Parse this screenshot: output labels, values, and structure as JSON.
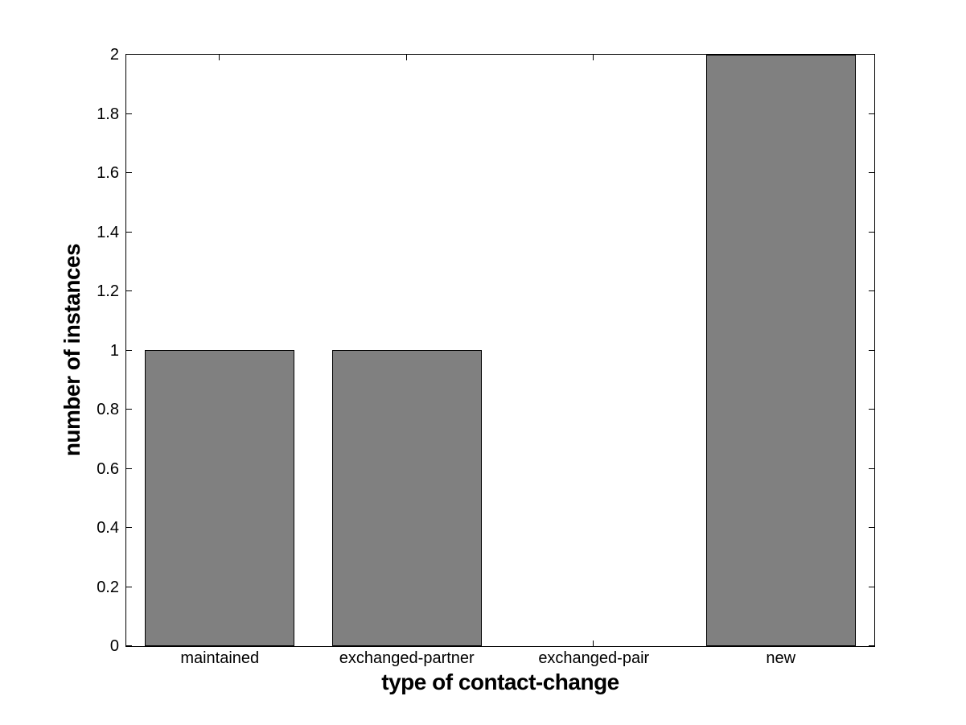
{
  "chart_data": {
    "type": "bar",
    "title": "",
    "categories": [
      "maintained",
      "exchanged-partner",
      "exchanged-pair",
      "new"
    ],
    "values": [
      1,
      1,
      0,
      2
    ],
    "xlabel": "type of contact-change",
    "ylabel": "number of instances",
    "xlim": [
      0.5,
      4.5
    ],
    "ylim": [
      0,
      2
    ],
    "yticks": [
      0,
      0.2,
      0.4,
      0.6,
      0.8,
      1,
      1.2,
      1.4,
      1.6,
      1.8,
      2
    ],
    "ytick_labels": [
      "0",
      "0.2",
      "0.4",
      "0.6",
      "0.8",
      "1",
      "1.2",
      "1.4",
      "1.6",
      "1.8",
      "2"
    ],
    "bar_width_fraction": 0.8,
    "bar_color": "#808080",
    "bar_edge_color": "#000000",
    "axis_color": "#000000",
    "background_color": "#ffffff",
    "grid": false,
    "legend": null,
    "tick_direction": "in"
  }
}
